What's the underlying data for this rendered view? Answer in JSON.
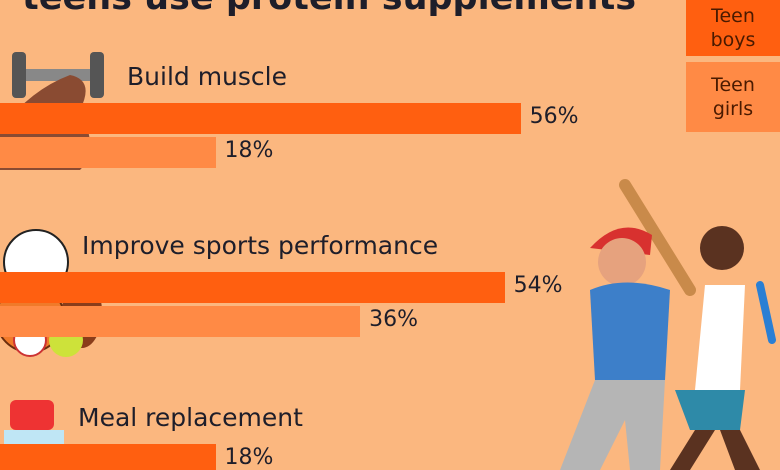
{
  "chart_data": {
    "type": "bar",
    "orientation": "horizontal",
    "title": "teens use protein supplements",
    "categories": [
      "Build muscle",
      "Improve sports performance",
      "Meal replacement"
    ],
    "series": [
      {
        "name": "Teen boys",
        "color": "#ff5f10",
        "values": [
          56,
          54,
          18
        ],
        "value_labels": [
          "56%",
          "54%",
          "18%"
        ]
      },
      {
        "name": "Teen girls",
        "color": "#ff8a45",
        "values": [
          18,
          36,
          null
        ],
        "value_labels": [
          "18%",
          "36%",
          null
        ]
      }
    ]
  }
}
